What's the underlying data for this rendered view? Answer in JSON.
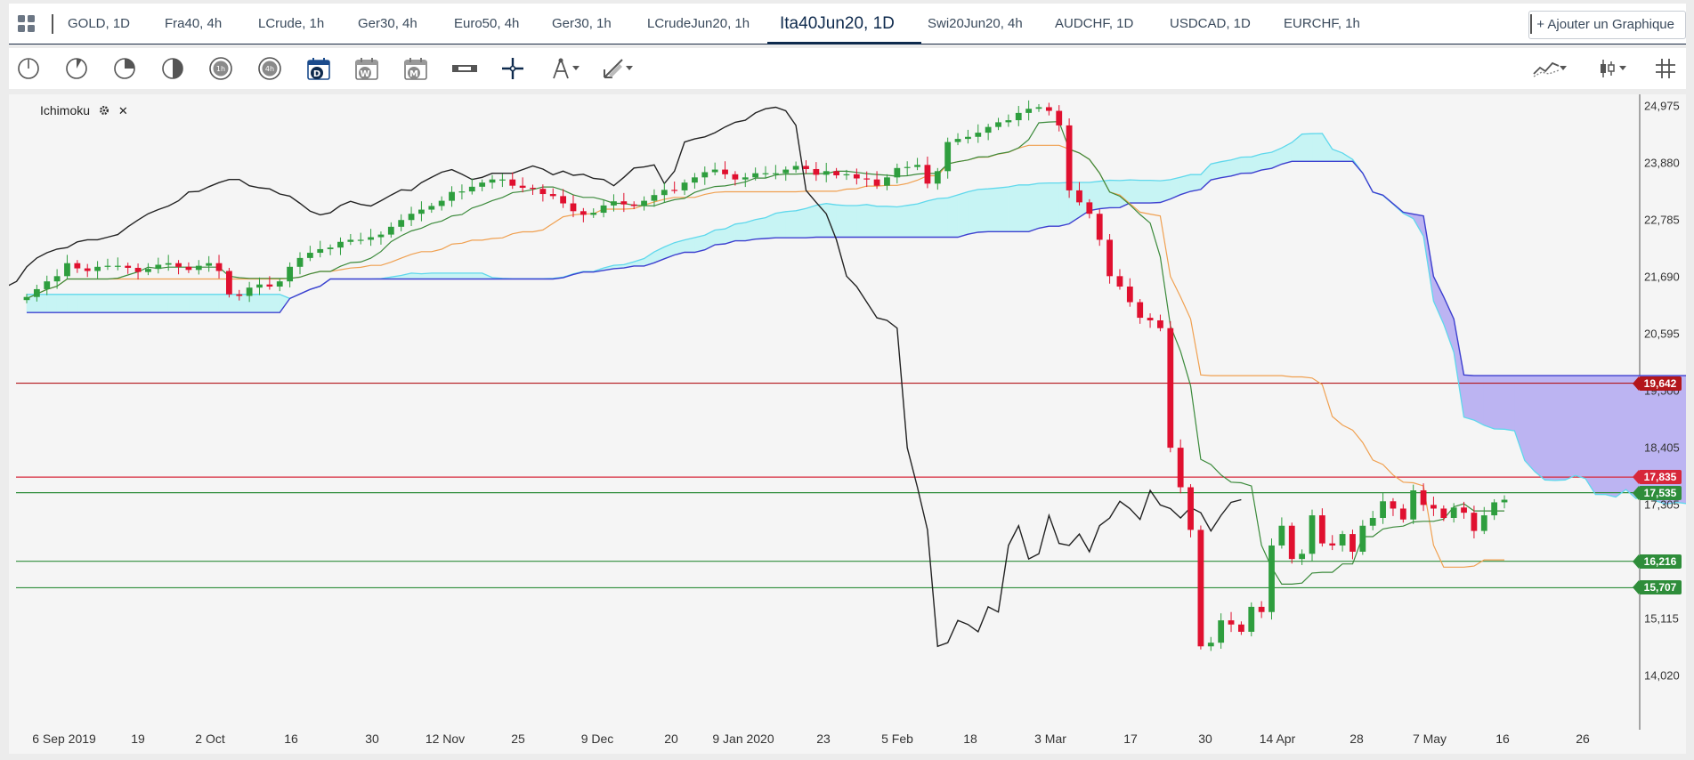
{
  "tabs": [
    {
      "label": "GOLD, 1D"
    },
    {
      "label": "Fra40, 4h"
    },
    {
      "label": "LCrude, 1h"
    },
    {
      "label": "Ger30, 4h"
    },
    {
      "label": "Euro50, 4h"
    },
    {
      "label": "Ger30, 1h"
    },
    {
      "label": "LCrudeJun20, 1h"
    },
    {
      "label": "Ita40Jun20, 1D"
    },
    {
      "label": "Swi20Jun20, 4h"
    },
    {
      "label": "AUDCHF, 1D"
    },
    {
      "label": "USDCAD, 1D"
    },
    {
      "label": "EURCHF, 1h"
    }
  ],
  "active_tab": "Ita40Jun20, 1D",
  "add_chart_label": "+ Ajouter un Graphique",
  "toolbar": {
    "timeframe_icons": [
      "1m",
      "5m",
      "15m",
      "30m",
      "1h",
      "4h"
    ],
    "day_icon": "D",
    "week_icon": "W",
    "month_icon": "M",
    "tools": [
      "ruler-icon",
      "crosshair-icon",
      "compass-icon",
      "draw-icon"
    ],
    "right_tools": [
      "line-type-icon",
      "candle-type-icon",
      "grid-icon"
    ]
  },
  "indicator": {
    "name": "Ichimoku",
    "settings_icon": "gear-icon",
    "close_icon": "close-icon"
  },
  "colors": {
    "up": "#2e9e3e",
    "down": "#e0102f",
    "tenkan": "#3b8a3b",
    "kijun": "#f0a050",
    "chikou": "#222222",
    "kumo_bull": "#c7f4f4",
    "kumo_bear": "#bcb4f2",
    "span_a": "#5fd8ec",
    "span_b": "#3d3fcf",
    "accent": "#0e2a4d"
  },
  "chart_data": {
    "type": "candlestick",
    "indicator": "Ichimoku",
    "x_ticks": [
      "6 Sep 2019",
      "19",
      "2 Oct",
      "16",
      "30",
      "12 Nov",
      "25",
      "9 Dec",
      "20",
      "9 Jan 2020",
      "23",
      "5 Feb",
      "18",
      "3 Mar",
      "17",
      "30",
      "14 Apr",
      "28",
      "7 May",
      "16",
      "26"
    ],
    "y_ticks": [
      "24,975",
      "23,880",
      "22,785",
      "21,690",
      "20,595",
      "19,500",
      "18,405",
      "17,305",
      "16,210",
      "15,115",
      "14,020"
    ],
    "ylim": [
      13400,
      25200
    ],
    "levels": [
      {
        "value": "19,642",
        "color": "#b3161b"
      },
      {
        "value": "17,835",
        "color": "#d7273a"
      },
      {
        "value": "17,535",
        "color": "#2e8d3a"
      },
      {
        "value": "16,216",
        "color": "#2e8d3a"
      },
      {
        "value": "15,707",
        "color": "#2e8d3a"
      }
    ],
    "candles_close": [
      21300,
      21450,
      21600,
      21700,
      21950,
      21850,
      21800,
      21880,
      21900,
      21900,
      21860,
      21780,
      21840,
      21920,
      21950,
      21880,
      21820,
      21900,
      21950,
      21800,
      21350,
      21320,
      21480,
      21540,
      21500,
      21600,
      21880,
      22050,
      22150,
      22220,
      22250,
      22360,
      22400,
      22400,
      22450,
      22500,
      22650,
      22780,
      22900,
      22980,
      23050,
      23150,
      23320,
      23330,
      23420,
      23500,
      23560,
      23560,
      23440,
      23400,
      23380,
      23280,
      23240,
      23100,
      22950,
      22880,
      22920,
      23060,
      23140,
      23080,
      23050,
      23150,
      23260,
      23360,
      23350,
      23500,
      23600,
      23700,
      23750,
      23660,
      23560,
      23600,
      23680,
      23680,
      23680,
      23750,
      23820,
      23760,
      23650,
      23720,
      23640,
      23660,
      23580,
      23560,
      23440,
      23600,
      23780,
      23800,
      23840,
      23480,
      23720,
      24280,
      24340,
      24380,
      24460,
      24570,
      24660,
      24700,
      24840,
      24920,
      24950,
      24880,
      24600,
      23350,
      23120,
      22900,
      22400,
      21700,
      21500,
      21200,
      20900,
      20850,
      20700,
      18400,
      17640,
      16820,
      14580,
      14650,
      15080,
      15000,
      14860,
      15340,
      15240,
      16520,
      16900,
      16260,
      16360,
      17100,
      16560,
      16520,
      16740,
      16400,
      16900,
      17050,
      17370,
      17230,
      17020,
      17580,
      17300,
      17230,
      17050,
      17250,
      17150,
      16800,
      17100,
      17350,
      17400
    ]
  },
  "x_labels": [
    "6 Sep 2019",
    "19",
    "2 Oct",
    "16",
    "30",
    "12 Nov",
    "25",
    "9 Dec",
    "20",
    "9 Jan 2020",
    "23",
    "5 Feb",
    "18",
    "3 Mar",
    "17",
    "30",
    "14 Apr",
    "28",
    "7 May",
    "16",
    "26"
  ],
  "y_labels": [
    "24,975",
    "23,880",
    "22,785",
    "21,690",
    "20,595",
    "19,500",
    "18,405",
    "17,305",
    "16,210",
    "15,115",
    "14,020"
  ]
}
